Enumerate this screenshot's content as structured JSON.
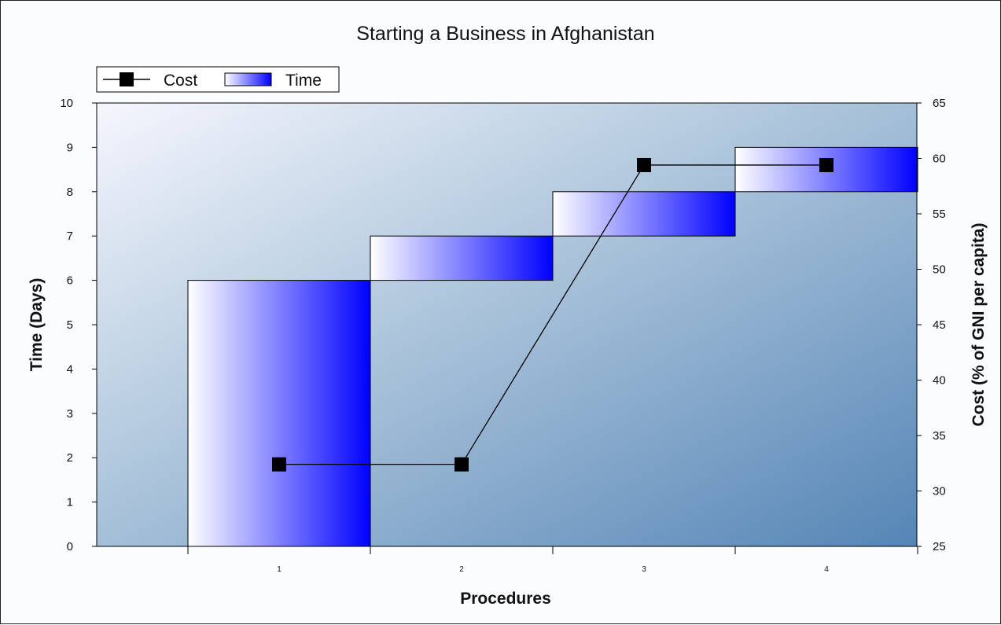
{
  "chart_data": {
    "type": "bar",
    "title": "Starting a Business in Afghanistan",
    "xlabel": "Procedures",
    "ylabel": "Time (Days)",
    "y2label": "Cost (% of GNI per capita)",
    "categories": [
      "1",
      "2",
      "3",
      "4"
    ],
    "ylim": [
      0,
      10
    ],
    "y2lim": [
      25,
      65
    ],
    "yticks": [
      "0",
      "1",
      "2",
      "3",
      "4",
      "5",
      "6",
      "7",
      "8",
      "9",
      "10"
    ],
    "y2ticks": [
      "25",
      "30",
      "35",
      "40",
      "45",
      "50",
      "55",
      "60",
      "65"
    ],
    "legend": {
      "position": "top-left",
      "entries": [
        "Cost",
        "Time"
      ]
    },
    "series": [
      {
        "name": "Time",
        "kind": "floating-bar",
        "start": [
          0,
          6,
          7,
          8
        ],
        "end": [
          6,
          7,
          8,
          9
        ]
      },
      {
        "name": "Cost",
        "kind": "line",
        "axis": "right",
        "values": [
          32.4,
          32.4,
          59.4,
          59.4
        ]
      }
    ],
    "colors": {
      "bar_light": "#ffffff",
      "bar_dark": "#0000ff",
      "line": "#000000",
      "marker": "#000000"
    }
  }
}
